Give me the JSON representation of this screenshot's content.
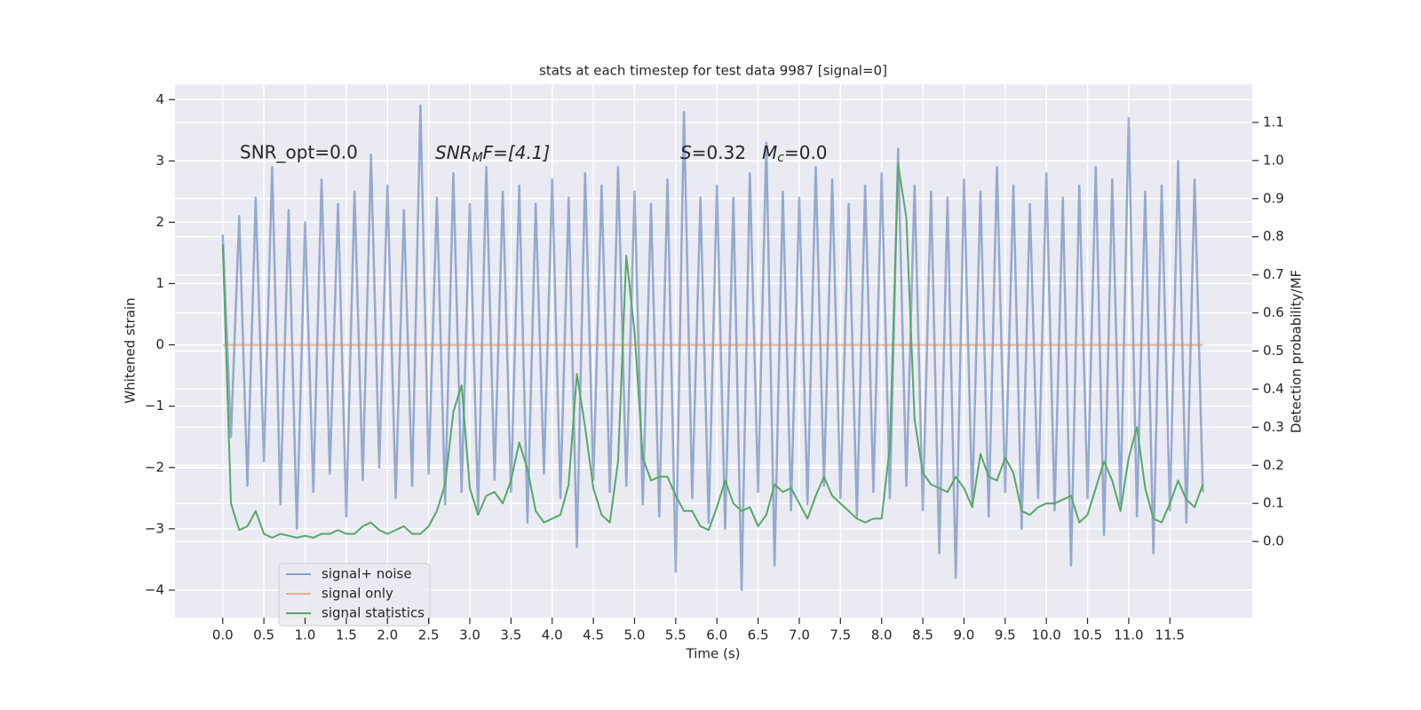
{
  "chart_data": {
    "type": "line",
    "title": "stats at each timestep for test data 9987 [signal=0]",
    "xlabel": "Time (s)",
    "ylabel": "Whitened strain",
    "y2label": "Detection probability/MF",
    "annotations": [
      [
        "SNR_opt=0.0"
      ],
      [
        "SNR",
        "M",
        "F=[4.1]"
      ],
      [
        "S",
        "=0.32"
      ],
      [
        "M",
        "c",
        "=0.0"
      ]
    ],
    "xlim": [
      -0.58,
      12.5
    ],
    "ylim": [
      -4.45,
      4.25
    ],
    "y2lim": [
      -0.2,
      1.2
    ],
    "xticks": [
      {
        "value": 0,
        "label": "0.0"
      },
      0.5,
      {
        "value": 1,
        "label": "1.0"
      },
      1.5,
      {
        "value": 2,
        "label": "2.0"
      },
      2.5,
      {
        "value": 3,
        "label": "3.0"
      },
      3.5,
      {
        "value": 4,
        "label": "4.0"
      },
      4.5,
      {
        "value": 5,
        "label": "5.0"
      },
      5.5,
      {
        "value": 6,
        "label": "6.0"
      },
      6.5,
      {
        "value": 7,
        "label": "7.0"
      },
      7.5,
      {
        "value": 8,
        "label": "8.0"
      },
      8.5,
      {
        "value": 9,
        "label": "9.0"
      },
      9.5,
      {
        "value": 10,
        "label": "10.0"
      },
      10.5,
      {
        "value": 11,
        "label": "11.0"
      },
      11.5
    ],
    "yticks": [
      {
        "value": -4,
        "label": "−4"
      },
      {
        "value": -3,
        "label": "−3"
      },
      {
        "value": -2,
        "label": "−2"
      },
      {
        "value": -1,
        "label": "−1"
      },
      0,
      1,
      2,
      3,
      4
    ],
    "y2ticks": [
      {
        "value": 0,
        "label": "0.0"
      },
      0.1,
      0.2,
      0.3,
      0.4,
      0.5,
      0.6,
      0.7,
      0.8,
      0.9,
      {
        "value": 1,
        "label": "1.0"
      },
      1.1
    ],
    "grid": true,
    "legend": "lower left",
    "x": [
      0,
      0.1,
      0.2,
      0.3,
      0.4,
      0.5,
      0.6,
      0.7,
      0.8,
      0.9,
      1,
      1.1,
      1.2,
      1.3,
      1.4,
      1.5,
      1.6,
      1.7,
      1.8,
      1.9,
      2,
      2.1,
      2.2,
      2.3,
      2.4,
      2.5,
      2.6,
      2.7,
      2.8,
      2.9,
      3,
      3.1,
      3.2,
      3.3,
      3.4,
      3.5,
      3.6,
      3.7,
      3.8,
      3.9,
      4,
      4.1,
      4.2,
      4.3,
      4.4,
      4.5,
      4.6,
      4.7,
      4.8,
      4.9,
      5,
      5.1,
      5.2,
      5.3,
      5.4,
      5.5,
      5.6,
      5.7,
      5.8,
      5.9,
      6,
      6.1,
      6.2,
      6.3,
      6.4,
      6.5,
      6.6,
      6.7,
      6.8,
      6.9,
      7,
      7.1,
      7.2,
      7.3,
      7.4,
      7.5,
      7.6,
      7.7,
      7.8,
      7.9,
      8,
      8.1,
      8.2,
      8.3,
      8.4,
      8.5,
      8.6,
      8.7,
      8.8,
      8.9,
      9,
      9.1,
      9.2,
      9.3,
      9.4,
      9.5,
      9.6,
      9.7,
      9.8,
      9.9,
      10,
      10.1,
      10.2,
      10.3,
      10.4,
      10.5,
      10.6,
      10.7,
      10.8,
      10.9,
      11,
      11.1,
      11.2,
      11.3,
      11.4,
      11.5,
      11.6,
      11.7,
      11.8,
      11.9
    ],
    "series": [
      {
        "name": "signal+ noise",
        "color": "#4c72b0",
        "values": [
          1.8,
          -1.5,
          2.1,
          -2.3,
          2.4,
          -1.9,
          2.9,
          -2.6,
          2.2,
          -3.0,
          2.0,
          -2.4,
          2.7,
          -2.1,
          2.3,
          -2.8,
          2.5,
          -2.2,
          3.1,
          -2.0,
          2.6,
          -2.5,
          2.2,
          -2.3,
          3.9,
          -2.1,
          2.4,
          -2.6,
          2.8,
          -2.4,
          2.3,
          -2.7,
          2.9,
          -2.2,
          2.5,
          -2.4,
          2.6,
          -2.9,
          2.3,
          -2.1,
          2.7,
          -2.5,
          2.4,
          -3.3,
          2.8,
          -2.2,
          2.6,
          -2.4,
          2.9,
          -2.3,
          2.5,
          -2.6,
          2.3,
          -2.8,
          2.7,
          -3.7,
          3.8,
          -2.5,
          2.4,
          -2.9,
          2.6,
          -3.0,
          2.4,
          -4.0,
          2.8,
          -2.4,
          3.3,
          -3.6,
          2.5,
          -2.7,
          2.4,
          -2.6,
          2.9,
          -2.3,
          2.7,
          -2.5,
          2.3,
          -2.8,
          2.6,
          -2.4,
          2.8,
          -2.5,
          3.2,
          -2.3,
          2.6,
          -2.7,
          2.5,
          -3.4,
          2.4,
          -3.8,
          2.7,
          -2.6,
          2.5,
          -2.8,
          2.9,
          -2.4,
          2.6,
          -3.0,
          2.3,
          -2.5,
          2.8,
          -2.7,
          2.4,
          -3.6,
          2.6,
          -2.5,
          2.9,
          -3.1,
          2.7,
          -2.6,
          3.7,
          -2.8,
          2.5,
          -3.4,
          2.6,
          -2.7,
          3.0,
          -2.9,
          2.7,
          -2.4
        ]
      },
      {
        "name": "signal only",
        "color": "#dd8452",
        "values": [
          0,
          0,
          0,
          0,
          0,
          0,
          0,
          0,
          0,
          0,
          0,
          0,
          0,
          0,
          0,
          0,
          0,
          0,
          0,
          0,
          0,
          0,
          0,
          0,
          0,
          0,
          0,
          0,
          0,
          0,
          0,
          0,
          0,
          0,
          0,
          0,
          0,
          0,
          0,
          0,
          0,
          0,
          0,
          0,
          0,
          0,
          0,
          0,
          0,
          0,
          0,
          0,
          0,
          0,
          0,
          0,
          0,
          0,
          0,
          0,
          0,
          0,
          0,
          0,
          0,
          0,
          0,
          0,
          0,
          0,
          0,
          0,
          0,
          0,
          0,
          0,
          0,
          0,
          0,
          0,
          0,
          0,
          0,
          0,
          0,
          0,
          0,
          0,
          0,
          0,
          0,
          0,
          0,
          0,
          0,
          0,
          0,
          0,
          0,
          0,
          0,
          0,
          0,
          0,
          0,
          0,
          0,
          0,
          0,
          0,
          0,
          0,
          0,
          0,
          0,
          0,
          0,
          0,
          0,
          0
        ]
      },
      {
        "name": "signal statistics",
        "color": "#55a868",
        "axis": "y2",
        "values": [
          0.78,
          0.1,
          0.03,
          0.04,
          0.08,
          0.02,
          0.01,
          0.02,
          0.015,
          0.01,
          0.015,
          0.01,
          0.02,
          0.02,
          0.03,
          0.02,
          0.02,
          0.04,
          0.05,
          0.03,
          0.02,
          0.03,
          0.04,
          0.02,
          0.02,
          0.04,
          0.08,
          0.15,
          0.34,
          0.41,
          0.14,
          0.07,
          0.12,
          0.13,
          0.1,
          0.16,
          0.26,
          0.19,
          0.08,
          0.05,
          0.06,
          0.07,
          0.15,
          0.44,
          0.3,
          0.14,
          0.07,
          0.05,
          0.21,
          0.75,
          0.55,
          0.22,
          0.16,
          0.17,
          0.17,
          0.12,
          0.08,
          0.08,
          0.04,
          0.03,
          0.09,
          0.16,
          0.1,
          0.08,
          0.09,
          0.04,
          0.07,
          0.15,
          0.13,
          0.14,
          0.1,
          0.06,
          0.12,
          0.17,
          0.12,
          0.1,
          0.08,
          0.06,
          0.05,
          0.06,
          0.06,
          0.25,
          0.99,
          0.85,
          0.32,
          0.18,
          0.15,
          0.14,
          0.13,
          0.17,
          0.14,
          0.09,
          0.23,
          0.17,
          0.16,
          0.22,
          0.18,
          0.08,
          0.07,
          0.09,
          0.1,
          0.1,
          0.11,
          0.12,
          0.05,
          0.07,
          0.14,
          0.21,
          0.16,
          0.08,
          0.22,
          0.3,
          0.14,
          0.06,
          0.05,
          0.1,
          0.16,
          0.11,
          0.09,
          0.15
        ]
      }
    ]
  }
}
